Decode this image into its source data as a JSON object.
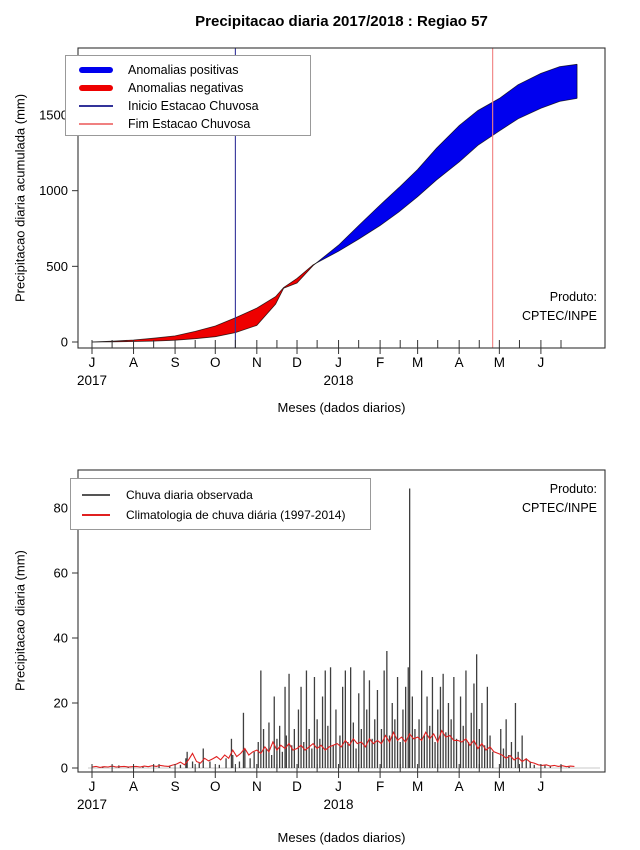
{
  "figure": {
    "title": "Precipitacao diaria 2017/2018 : Regiao 57",
    "product_line1": "Produto:",
    "product_line2": "CPTEC/INPE"
  },
  "colors": {
    "positive_anomaly": "#0000ee",
    "negative_anomaly": "#ee0000",
    "season_start_line": "#333399",
    "season_end_line": "#f08080",
    "observed_bar": "#3f3f3f",
    "climatology_line": "#e02020",
    "axis": "#333333",
    "zero_line": "#c8c8c8"
  },
  "chart_data": [
    {
      "type": "area",
      "title": "Precipitacao diaria 2017/2018 : Regiao 57",
      "xlabel": "Meses (dados diarios)",
      "ylabel": "Precipitacao diaria acumulada (mm)",
      "ylim": [
        0,
        1900
      ],
      "yticks": [
        0,
        500,
        1000,
        1500
      ],
      "month_tick_labels": [
        "J",
        "A",
        "S",
        "O",
        "N",
        "D",
        "J",
        "F",
        "M",
        "A",
        "M",
        "J"
      ],
      "month_start_days": [
        0,
        31,
        62,
        92,
        123,
        153,
        184,
        215,
        243,
        274,
        304,
        335
      ],
      "year_labels": [
        {
          "label": "2017",
          "day": 0
        },
        {
          "label": "2018",
          "day": 184
        }
      ],
      "legend": [
        {
          "label": "Anomalias positivas",
          "style": "thick",
          "color": "#0000ee"
        },
        {
          "label": "Anomalias negativas",
          "style": "thick",
          "color": "#ee0000"
        },
        {
          "label": "Inicio Estacao Chuvosa",
          "style": "thin",
          "color": "#333399"
        },
        {
          "label": "Fim Estacao Chuvosa",
          "style": "thin",
          "color": "#f08080"
        }
      ],
      "season_markers": {
        "inicio_day": 107,
        "fim_day": 299
      },
      "days": [
        0,
        15,
        31,
        46,
        62,
        77,
        92,
        107,
        123,
        137,
        143,
        153,
        165,
        184,
        199,
        215,
        229,
        243,
        257,
        274,
        288,
        304,
        318,
        335,
        349,
        362
      ],
      "series": [
        {
          "name": "Precipitacao acumulada observada",
          "values": [
            0,
            1,
            3,
            6,
            12,
            22,
            35,
            62,
            110,
            250,
            355,
            390,
            505,
            640,
            770,
            905,
            1020,
            1140,
            1280,
            1430,
            1530,
            1610,
            1700,
            1775,
            1820,
            1835
          ]
        },
        {
          "name": "Climatologia acumulada",
          "values": [
            0,
            5,
            13,
            25,
            40,
            70,
            106,
            160,
            224,
            300,
            360,
            420,
            510,
            600,
            680,
            770,
            860,
            960,
            1070,
            1190,
            1300,
            1395,
            1475,
            1545,
            1590,
            1610
          ]
        }
      ]
    },
    {
      "type": "bar",
      "xlabel": "Meses (dados diarios)",
      "ylabel": "Precipitacao diaria (mm)",
      "ylim": [
        0,
        90
      ],
      "yticks": [
        0,
        20,
        40,
        60,
        80
      ],
      "month_tick_labels": [
        "J",
        "A",
        "S",
        "O",
        "N",
        "D",
        "J",
        "F",
        "M",
        "A",
        "M",
        "J"
      ],
      "month_start_days": [
        0,
        31,
        62,
        92,
        123,
        153,
        184,
        215,
        243,
        274,
        304,
        335
      ],
      "year_labels": [
        {
          "label": "2017",
          "day": 0
        },
        {
          "label": "2018",
          "day": 184
        }
      ],
      "legend": [
        {
          "label": "Chuva diaria observada",
          "style": "thin",
          "color": "#555555"
        },
        {
          "label": "Climatologia de chuva diária (1997-2014)",
          "style": "thin",
          "color": "#e02020"
        }
      ],
      "bars_day_mm": [
        [
          8,
          0.5
        ],
        [
          20,
          0.8
        ],
        [
          27,
          0.4
        ],
        [
          38,
          0.6
        ],
        [
          50,
          1.2
        ],
        [
          58,
          0.5
        ],
        [
          66,
          1
        ],
        [
          70,
          3
        ],
        [
          71,
          5
        ],
        [
          75,
          2
        ],
        [
          80,
          1.5
        ],
        [
          83,
          6
        ],
        [
          88,
          2
        ],
        [
          95,
          1
        ],
        [
          100,
          3
        ],
        [
          104,
          9
        ],
        [
          105,
          4
        ],
        [
          110,
          2
        ],
        [
          113,
          17
        ],
        [
          114,
          6
        ],
        [
          118,
          3
        ],
        [
          121,
          5
        ],
        [
          124,
          8
        ],
        [
          126,
          30
        ],
        [
          128,
          12
        ],
        [
          130,
          6
        ],
        [
          132,
          14
        ],
        [
          134,
          4
        ],
        [
          136,
          22
        ],
        [
          138,
          9
        ],
        [
          140,
          13
        ],
        [
          142,
          5
        ],
        [
          144,
          25
        ],
        [
          145,
          10
        ],
        [
          147,
          29
        ],
        [
          149,
          7
        ],
        [
          151,
          12
        ],
        [
          154,
          18
        ],
        [
          156,
          25
        ],
        [
          158,
          8
        ],
        [
          160,
          30
        ],
        [
          162,
          12
        ],
        [
          164,
          6
        ],
        [
          166,
          28
        ],
        [
          168,
          15
        ],
        [
          170,
          9
        ],
        [
          172,
          22
        ],
        [
          174,
          30
        ],
        [
          176,
          13
        ],
        [
          178,
          31
        ],
        [
          180,
          7
        ],
        [
          182,
          18
        ],
        [
          185,
          10
        ],
        [
          187,
          25
        ],
        [
          189,
          30
        ],
        [
          191,
          8
        ],
        [
          193,
          31
        ],
        [
          195,
          14
        ],
        [
          197,
          6
        ],
        [
          199,
          23
        ],
        [
          201,
          12
        ],
        [
          203,
          30
        ],
        [
          205,
          18
        ],
        [
          207,
          27
        ],
        [
          209,
          9
        ],
        [
          211,
          15
        ],
        [
          213,
          24
        ],
        [
          216,
          12
        ],
        [
          218,
          30
        ],
        [
          220,
          36
        ],
        [
          222,
          10
        ],
        [
          224,
          20
        ],
        [
          226,
          15
        ],
        [
          228,
          28
        ],
        [
          230,
          8
        ],
        [
          232,
          18
        ],
        [
          234,
          25
        ],
        [
          236,
          31
        ],
        [
          237,
          86
        ],
        [
          239,
          22
        ],
        [
          241,
          12
        ],
        [
          244,
          15
        ],
        [
          246,
          30
        ],
        [
          248,
          10
        ],
        [
          250,
          22
        ],
        [
          252,
          13
        ],
        [
          254,
          28
        ],
        [
          256,
          8
        ],
        [
          258,
          18
        ],
        [
          260,
          25
        ],
        [
          262,
          29
        ],
        [
          264,
          11
        ],
        [
          266,
          20
        ],
        [
          268,
          15
        ],
        [
          270,
          28
        ],
        [
          272,
          9
        ],
        [
          275,
          22
        ],
        [
          277,
          13
        ],
        [
          279,
          30
        ],
        [
          281,
          8
        ],
        [
          283,
          17
        ],
        [
          285,
          26
        ],
        [
          287,
          35
        ],
        [
          289,
          12
        ],
        [
          291,
          20
        ],
        [
          293,
          7
        ],
        [
          295,
          25
        ],
        [
          297,
          10
        ],
        [
          299,
          5
        ],
        [
          305,
          12
        ],
        [
          307,
          6
        ],
        [
          309,
          15
        ],
        [
          311,
          4
        ],
        [
          313,
          8
        ],
        [
          316,
          20
        ],
        [
          318,
          5
        ],
        [
          321,
          10
        ],
        [
          324,
          3
        ],
        [
          327,
          2
        ],
        [
          330,
          1
        ],
        [
          338,
          1
        ],
        [
          342,
          0.5
        ],
        [
          350,
          0.8
        ],
        [
          356,
          0.4
        ]
      ],
      "clim_step_days": 3,
      "clim_values": [
        0.3,
        0.5,
        0.2,
        0.4,
        0.3,
        0.6,
        0.3,
        0.4,
        0.5,
        0.3,
        0.4,
        0.5,
        0.3,
        0.6,
        0.4,
        0.7,
        0.5,
        0.8,
        0.6,
        0.5,
        0.9,
        1.2,
        1.8,
        1.0,
        2.5,
        4.5,
        2.0,
        1.5,
        3.0,
        2.2,
        2.8,
        3.5,
        2.5,
        4.0,
        3.0,
        5.5,
        3.5,
        4.5,
        6.0,
        4.0,
        5.0,
        5.5,
        4.5,
        6.5,
        5.0,
        8.0,
        5.5,
        7.0,
        6.0,
        7.5,
        5.5,
        6.0,
        7.0,
        5.5,
        6.5,
        7.5,
        6.0,
        7.0,
        5.5,
        6.5,
        7.0,
        7.5,
        6.5,
        8.5,
        7.0,
        9.0,
        7.5,
        8.0,
        6.5,
        9.0,
        7.5,
        8.5,
        7.5,
        10.0,
        8.0,
        11.0,
        8.5,
        9.5,
        8.0,
        10.5,
        9.0,
        9.5,
        8.5,
        11.0,
        9.0,
        10.5,
        8.0,
        11.5,
        9.5,
        10.0,
        8.5,
        8.5,
        8.0,
        9.0,
        7.0,
        8.5,
        6.0,
        7.5,
        5.5,
        6.5,
        5.0,
        4.5,
        4.0,
        3.0,
        3.8,
        2.5,
        3.2,
        2.0,
        2.8,
        1.8,
        1.5,
        1.0,
        0.8,
        1.0,
        0.6,
        0.8,
        0.5,
        0.7,
        0.4,
        0.6,
        0.5
      ]
    }
  ]
}
